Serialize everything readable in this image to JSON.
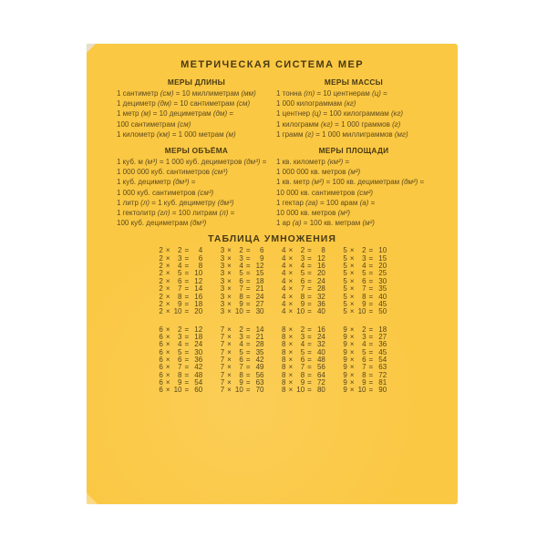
{
  "page": {
    "background_color": "#ffffff"
  },
  "card": {
    "background_color": "#fbc843",
    "heading_color": "#483a14",
    "text_color": "#5b4a1f",
    "fold_color_top": "#e9ddc2",
    "fold_color_bottom": "#fcdc8f",
    "title": "МЕТРИЧЕСКАЯ СИСТЕМА МЕР",
    "sections": [
      {
        "id": "length",
        "title": "МЕРЫ ДЛИНЫ",
        "lines": [
          "1 сантиметр (см) = 10 миллиметрам (мм)",
          "1 дециметр (дм) = 10 сантиметрам (см)",
          "1 метр (м) = 10 дециметрам (дм) =",
          "100 сантиметрам (см)",
          "1 километр (км) = 1 000 метрам (м)"
        ]
      },
      {
        "id": "mass",
        "title": "МЕРЫ МАССЫ",
        "lines": [
          "1 тонна (т) = 10 центнерам (ц) =",
          "1 000 килограммам (кг)",
          "1 центнер (ц) = 100 килограммам (кг)",
          "1 килограмм (кг) = 1 000 граммов (г)",
          "1 грамм (г) = 1 000 миллиграммов (мг)"
        ]
      },
      {
        "id": "volume",
        "title": "МЕРЫ ОБЪЁМА",
        "lines": [
          "1 куб. м (м³) = 1 000 куб. дециметров (дм³) =",
          "1 000 000 куб. сантиметров (см³)",
          "1 куб. дециметр (дм³) =",
          "1 000 куб. сантиметров (см³)",
          "1 литр (л) = 1 куб. дециметру (дм³)",
          "1 гектолитр (гл) = 100 литрам (л) =",
          "100 куб. дециметрам (дм³)"
        ]
      },
      {
        "id": "area",
        "title": "МЕРЫ ПЛОЩАДИ",
        "lines": [
          "1 кв. километр (км²) =",
          "1 000 000 кв. метров (м²)",
          "1 кв. метр (м²) = 100 кв. дециметрам (дм²) =",
          "10 000 кв. сантиметров (см²)",
          "1 гектар (га) = 100 арам (а) =",
          "10 000 кв. метров (м²)",
          "1 ар (а) = 100 кв. метрам (м²)"
        ]
      }
    ],
    "multiplication": {
      "title": "ТАБЛИЦА УМНОЖЕНИЯ",
      "times_symbol": "×",
      "equals_symbol": "=",
      "groups": [
        {
          "factor": 2,
          "rows": [
            [
              2,
              4
            ],
            [
              3,
              6
            ],
            [
              4,
              8
            ],
            [
              5,
              10
            ],
            [
              6,
              12
            ],
            [
              7,
              14
            ],
            [
              8,
              16
            ],
            [
              9,
              18
            ],
            [
              10,
              20
            ]
          ]
        },
        {
          "factor": 3,
          "rows": [
            [
              2,
              6
            ],
            [
              3,
              9
            ],
            [
              4,
              12
            ],
            [
              5,
              15
            ],
            [
              6,
              18
            ],
            [
              7,
              21
            ],
            [
              8,
              24
            ],
            [
              9,
              27
            ],
            [
              10,
              30
            ]
          ]
        },
        {
          "factor": 4,
          "rows": [
            [
              2,
              8
            ],
            [
              3,
              12
            ],
            [
              4,
              16
            ],
            [
              5,
              20
            ],
            [
              6,
              24
            ],
            [
              7,
              28
            ],
            [
              8,
              32
            ],
            [
              9,
              36
            ],
            [
              10,
              40
            ]
          ]
        },
        {
          "factor": 5,
          "rows": [
            [
              2,
              10
            ],
            [
              3,
              15
            ],
            [
              4,
              20
            ],
            [
              5,
              25
            ],
            [
              6,
              30
            ],
            [
              7,
              35
            ],
            [
              8,
              40
            ],
            [
              9,
              45
            ],
            [
              10,
              50
            ]
          ]
        },
        {
          "factor": 6,
          "rows": [
            [
              2,
              12
            ],
            [
              3,
              18
            ],
            [
              4,
              24
            ],
            [
              5,
              30
            ],
            [
              6,
              36
            ],
            [
              7,
              42
            ],
            [
              8,
              48
            ],
            [
              9,
              54
            ],
            [
              10,
              60
            ]
          ]
        },
        {
          "factor": 7,
          "rows": [
            [
              2,
              14
            ],
            [
              3,
              21
            ],
            [
              4,
              28
            ],
            [
              5,
              35
            ],
            [
              6,
              42
            ],
            [
              7,
              49
            ],
            [
              8,
              56
            ],
            [
              9,
              63
            ],
            [
              10,
              70
            ]
          ]
        },
        {
          "factor": 8,
          "rows": [
            [
              2,
              16
            ],
            [
              3,
              24
            ],
            [
              4,
              32
            ],
            [
              5,
              40
            ],
            [
              6,
              48
            ],
            [
              7,
              56
            ],
            [
              8,
              64
            ],
            [
              9,
              72
            ],
            [
              10,
              80
            ]
          ]
        },
        {
          "factor": 9,
          "rows": [
            [
              2,
              18
            ],
            [
              3,
              27
            ],
            [
              4,
              36
            ],
            [
              5,
              45
            ],
            [
              6,
              54
            ],
            [
              7,
              63
            ],
            [
              8,
              72
            ],
            [
              9,
              81
            ],
            [
              10,
              90
            ]
          ]
        }
      ]
    }
  }
}
